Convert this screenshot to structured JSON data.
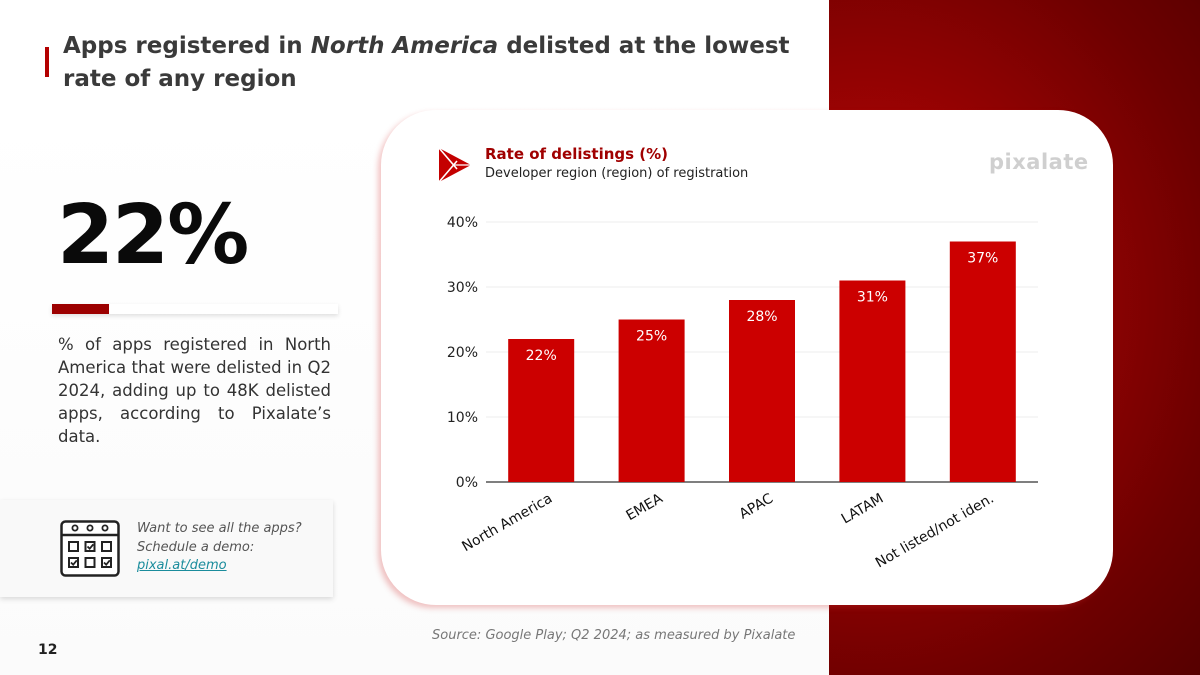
{
  "title": {
    "prefix": "Apps registered in ",
    "emphasis": "North America",
    "suffix": " delisted at the lowest rate of any region"
  },
  "stat": {
    "value": "22%",
    "progress": 0.2,
    "description": "% of apps registered in North America that were delisted in Q2 2024, adding up to 48K delisted apps, according to Pixalate’s data."
  },
  "demo": {
    "text": "Want to see all the apps? Schedule a demo: ",
    "link": "pixal.at/demo",
    "icon": "calendar-checklist-icon"
  },
  "page_number": "12",
  "source": "Source: Google Play; Q2 2024; as measured by Pixalate",
  "brand": "pixalate",
  "colors": {
    "accent": "#b30000",
    "bar": "#cc0000",
    "panel": "#8b0000",
    "link": "#1a8c9c"
  },
  "chart_data": {
    "type": "bar",
    "title": "Rate of delistings (%)",
    "subtitle": "Developer region (region) of registration",
    "categories": [
      "North America",
      "EMEA",
      "APAC",
      "LATAM",
      "Not listed/not iden."
    ],
    "values": [
      22,
      25,
      28,
      31,
      37
    ],
    "value_labels": [
      "22%",
      "25%",
      "28%",
      "31%",
      "37%"
    ],
    "yticks": [
      "0%",
      "10%",
      "20%",
      "30%",
      "40%"
    ],
    "ytick_values": [
      0,
      10,
      20,
      30,
      40
    ],
    "ylim": [
      0,
      40
    ],
    "xlabel": "",
    "ylabel": "",
    "grid": true,
    "legend": "none",
    "icon": "google-play-icon"
  }
}
